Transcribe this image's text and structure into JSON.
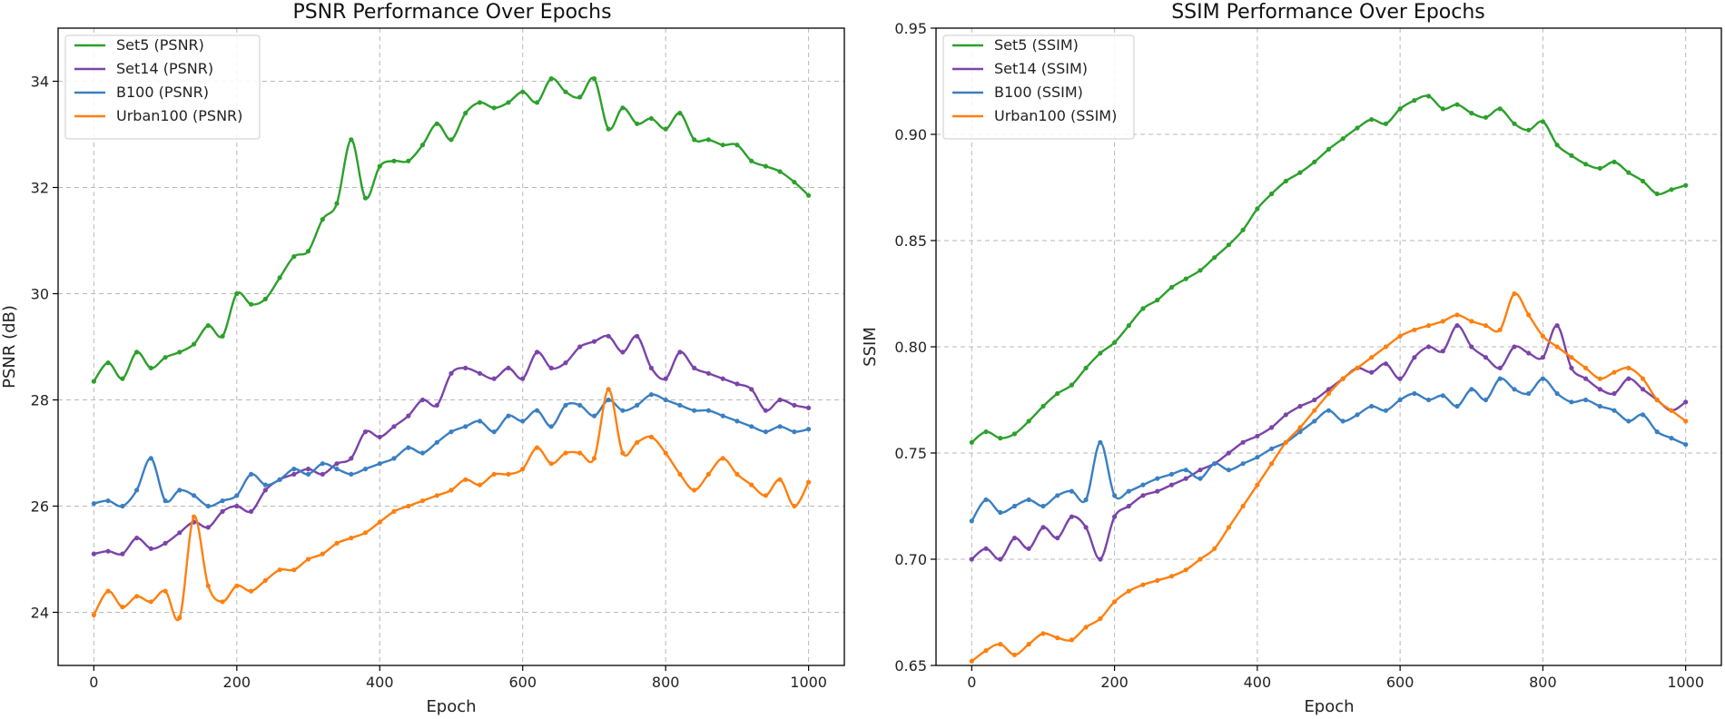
{
  "chart_data": [
    {
      "type": "line",
      "title": "PSNR Performance Over Epochs",
      "xlabel": "Epoch",
      "ylabel": "PSNR (dB)",
      "xlim": [
        -50,
        1050
      ],
      "ylim": [
        23.0,
        35.0
      ],
      "xticks": [
        0,
        200,
        400,
        600,
        800,
        1000
      ],
      "yticks": [
        24,
        26,
        28,
        30,
        32,
        34
      ],
      "ytick_decimals": 0,
      "grid": true,
      "legend_position": "top-left",
      "series": [
        {
          "name": "Set5 (PSNR)",
          "color": "#2ca02c",
          "x": [
            0,
            20,
            40,
            60,
            80,
            100,
            120,
            140,
            160,
            180,
            200,
            220,
            240,
            260,
            280,
            300,
            320,
            340,
            360,
            380,
            400,
            420,
            440,
            460,
            480,
            500,
            520,
            540,
            560,
            580,
            600,
            620,
            640,
            660,
            680,
            700,
            720,
            740,
            760,
            780,
            800,
            820,
            840,
            860,
            880,
            900,
            920,
            940,
            960,
            980,
            1000
          ],
          "values": [
            28.35,
            28.7,
            28.4,
            28.9,
            28.6,
            28.8,
            28.9,
            29.05,
            29.4,
            29.2,
            30.0,
            29.8,
            29.9,
            30.3,
            30.7,
            30.8,
            31.4,
            31.7,
            32.9,
            31.8,
            32.4,
            32.5,
            32.5,
            32.8,
            33.2,
            32.9,
            33.4,
            33.6,
            33.5,
            33.6,
            33.8,
            33.6,
            34.05,
            33.8,
            33.7,
            34.05,
            33.1,
            33.5,
            33.2,
            33.3,
            33.1,
            33.4,
            32.9,
            32.9,
            32.8,
            32.8,
            32.5,
            32.4,
            32.3,
            32.1,
            31.85
          ]
        },
        {
          "name": "Set14 (PSNR)",
          "color": "#7b44a8",
          "x": [
            0,
            20,
            40,
            60,
            80,
            100,
            120,
            140,
            160,
            180,
            200,
            220,
            240,
            260,
            280,
            300,
            320,
            340,
            360,
            380,
            400,
            420,
            440,
            460,
            480,
            500,
            520,
            540,
            560,
            580,
            600,
            620,
            640,
            660,
            680,
            700,
            720,
            740,
            760,
            780,
            800,
            820,
            840,
            860,
            880,
            900,
            920,
            940,
            960,
            980,
            1000
          ],
          "values": [
            25.1,
            25.15,
            25.1,
            25.4,
            25.2,
            25.3,
            25.5,
            25.7,
            25.6,
            25.9,
            26.0,
            25.9,
            26.3,
            26.5,
            26.6,
            26.7,
            26.6,
            26.8,
            26.9,
            27.4,
            27.3,
            27.5,
            27.7,
            28.0,
            27.9,
            28.5,
            28.6,
            28.5,
            28.4,
            28.6,
            28.4,
            28.9,
            28.6,
            28.7,
            29.0,
            29.1,
            29.2,
            28.9,
            29.2,
            28.6,
            28.4,
            28.9,
            28.6,
            28.5,
            28.4,
            28.3,
            28.2,
            27.8,
            28.0,
            27.9,
            27.85
          ]
        },
        {
          "name": "B100 (PSNR)",
          "color": "#3a7fc1",
          "x": [
            0,
            20,
            40,
            60,
            80,
            100,
            120,
            140,
            160,
            180,
            200,
            220,
            240,
            260,
            280,
            300,
            320,
            340,
            360,
            380,
            400,
            420,
            440,
            460,
            480,
            500,
            520,
            540,
            560,
            580,
            600,
            620,
            640,
            660,
            680,
            700,
            720,
            740,
            760,
            780,
            800,
            820,
            840,
            860,
            880,
            900,
            920,
            940,
            960,
            980,
            1000
          ],
          "values": [
            26.05,
            26.1,
            26.0,
            26.3,
            26.9,
            26.1,
            26.3,
            26.2,
            26.0,
            26.1,
            26.2,
            26.6,
            26.4,
            26.5,
            26.7,
            26.6,
            26.8,
            26.7,
            26.6,
            26.7,
            26.8,
            26.9,
            27.1,
            27.0,
            27.2,
            27.4,
            27.5,
            27.6,
            27.4,
            27.7,
            27.6,
            27.8,
            27.5,
            27.9,
            27.9,
            27.7,
            28.0,
            27.8,
            27.9,
            28.1,
            28.0,
            27.9,
            27.8,
            27.8,
            27.7,
            27.6,
            27.5,
            27.4,
            27.5,
            27.4,
            27.45
          ]
        },
        {
          "name": "Urban100 (PSNR)",
          "color": "#ff7f0e",
          "x": [
            0,
            20,
            40,
            60,
            80,
            100,
            120,
            140,
            160,
            180,
            200,
            220,
            240,
            260,
            280,
            300,
            320,
            340,
            360,
            380,
            400,
            420,
            440,
            460,
            480,
            500,
            520,
            540,
            560,
            580,
            600,
            620,
            640,
            660,
            680,
            700,
            720,
            740,
            760,
            780,
            800,
            820,
            840,
            860,
            880,
            900,
            920,
            940,
            960,
            980,
            1000
          ],
          "values": [
            23.95,
            24.4,
            24.1,
            24.3,
            24.2,
            24.4,
            23.9,
            25.8,
            24.5,
            24.2,
            24.5,
            24.4,
            24.6,
            24.8,
            24.8,
            25.0,
            25.1,
            25.3,
            25.4,
            25.5,
            25.7,
            25.9,
            26.0,
            26.1,
            26.2,
            26.3,
            26.5,
            26.4,
            26.6,
            26.6,
            26.7,
            27.1,
            26.8,
            27.0,
            27.0,
            26.9,
            28.2,
            27.0,
            27.2,
            27.3,
            27.0,
            26.6,
            26.3,
            26.6,
            26.9,
            26.6,
            26.4,
            26.2,
            26.5,
            26.0,
            26.45
          ]
        }
      ]
    },
    {
      "type": "line",
      "title": "SSIM Performance Over Epochs",
      "xlabel": "Epoch",
      "ylabel": "SSIM",
      "xlim": [
        -50,
        1050
      ],
      "ylim": [
        0.65,
        0.95
      ],
      "xticks": [
        0,
        200,
        400,
        600,
        800,
        1000
      ],
      "yticks": [
        0.65,
        0.7,
        0.75,
        0.8,
        0.85,
        0.9,
        0.95
      ],
      "ytick_decimals": 2,
      "grid": true,
      "legend_position": "top-left",
      "series": [
        {
          "name": "Set5 (SSIM)",
          "color": "#2ca02c",
          "x": [
            0,
            20,
            40,
            60,
            80,
            100,
            120,
            140,
            160,
            180,
            200,
            220,
            240,
            260,
            280,
            300,
            320,
            340,
            360,
            380,
            400,
            420,
            440,
            460,
            480,
            500,
            520,
            540,
            560,
            580,
            600,
            620,
            640,
            660,
            680,
            700,
            720,
            740,
            760,
            780,
            800,
            820,
            840,
            860,
            880,
            900,
            920,
            940,
            960,
            980,
            1000
          ],
          "values": [
            0.755,
            0.76,
            0.757,
            0.759,
            0.765,
            0.772,
            0.778,
            0.782,
            0.79,
            0.797,
            0.802,
            0.81,
            0.818,
            0.822,
            0.828,
            0.832,
            0.836,
            0.842,
            0.848,
            0.855,
            0.865,
            0.872,
            0.878,
            0.882,
            0.887,
            0.893,
            0.898,
            0.903,
            0.907,
            0.905,
            0.912,
            0.916,
            0.918,
            0.912,
            0.914,
            0.91,
            0.908,
            0.912,
            0.905,
            0.902,
            0.906,
            0.895,
            0.89,
            0.886,
            0.884,
            0.887,
            0.882,
            0.878,
            0.872,
            0.874,
            0.876
          ]
        },
        {
          "name": "Set14 (SSIM)",
          "color": "#7b44a8",
          "x": [
            0,
            20,
            40,
            60,
            80,
            100,
            120,
            140,
            160,
            180,
            200,
            220,
            240,
            260,
            280,
            300,
            320,
            340,
            360,
            380,
            400,
            420,
            440,
            460,
            480,
            500,
            520,
            540,
            560,
            580,
            600,
            620,
            640,
            660,
            680,
            700,
            720,
            740,
            760,
            780,
            800,
            820,
            840,
            860,
            880,
            900,
            920,
            940,
            960,
            980,
            1000
          ],
          "values": [
            0.7,
            0.705,
            0.7,
            0.71,
            0.705,
            0.715,
            0.71,
            0.72,
            0.715,
            0.7,
            0.72,
            0.725,
            0.73,
            0.732,
            0.735,
            0.738,
            0.742,
            0.745,
            0.75,
            0.755,
            0.758,
            0.762,
            0.768,
            0.772,
            0.775,
            0.78,
            0.785,
            0.79,
            0.788,
            0.792,
            0.785,
            0.795,
            0.8,
            0.798,
            0.81,
            0.8,
            0.795,
            0.79,
            0.8,
            0.797,
            0.795,
            0.81,
            0.79,
            0.785,
            0.78,
            0.778,
            0.785,
            0.78,
            0.775,
            0.77,
            0.774
          ]
        },
        {
          "name": "B100 (SSIM)",
          "color": "#3a7fc1",
          "x": [
            0,
            20,
            40,
            60,
            80,
            100,
            120,
            140,
            160,
            180,
            200,
            220,
            240,
            260,
            280,
            300,
            320,
            340,
            360,
            380,
            400,
            420,
            440,
            460,
            480,
            500,
            520,
            540,
            560,
            580,
            600,
            620,
            640,
            660,
            680,
            700,
            720,
            740,
            760,
            780,
            800,
            820,
            840,
            860,
            880,
            900,
            920,
            940,
            960,
            980,
            1000
          ],
          "values": [
            0.718,
            0.728,
            0.722,
            0.725,
            0.728,
            0.725,
            0.73,
            0.732,
            0.728,
            0.755,
            0.73,
            0.732,
            0.735,
            0.738,
            0.74,
            0.742,
            0.738,
            0.745,
            0.742,
            0.745,
            0.748,
            0.752,
            0.755,
            0.76,
            0.765,
            0.77,
            0.765,
            0.768,
            0.772,
            0.77,
            0.775,
            0.778,
            0.775,
            0.777,
            0.772,
            0.78,
            0.775,
            0.785,
            0.78,
            0.778,
            0.785,
            0.778,
            0.774,
            0.775,
            0.772,
            0.77,
            0.765,
            0.768,
            0.76,
            0.757,
            0.754
          ]
        },
        {
          "name": "Urban100 (SSIM)",
          "color": "#ff7f0e",
          "x": [
            0,
            20,
            40,
            60,
            80,
            100,
            120,
            140,
            160,
            180,
            200,
            220,
            240,
            260,
            280,
            300,
            320,
            340,
            360,
            380,
            400,
            420,
            440,
            460,
            480,
            500,
            520,
            540,
            560,
            580,
            600,
            620,
            640,
            660,
            680,
            700,
            720,
            740,
            760,
            780,
            800,
            820,
            840,
            860,
            880,
            900,
            920,
            940,
            960,
            980,
            1000
          ],
          "values": [
            0.652,
            0.657,
            0.66,
            0.655,
            0.66,
            0.665,
            0.663,
            0.662,
            0.668,
            0.672,
            0.68,
            0.685,
            0.688,
            0.69,
            0.692,
            0.695,
            0.7,
            0.705,
            0.715,
            0.725,
            0.735,
            0.745,
            0.755,
            0.762,
            0.77,
            0.778,
            0.785,
            0.79,
            0.795,
            0.8,
            0.805,
            0.808,
            0.81,
            0.812,
            0.815,
            0.812,
            0.81,
            0.808,
            0.825,
            0.815,
            0.805,
            0.8,
            0.795,
            0.79,
            0.785,
            0.788,
            0.79,
            0.785,
            0.775,
            0.77,
            0.765
          ]
        }
      ]
    }
  ]
}
